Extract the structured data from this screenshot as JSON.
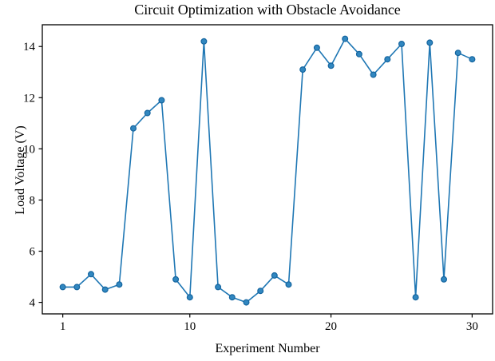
{
  "chart_data": {
    "type": "line",
    "title": "Circuit Optimization with Obstacle Avoidance",
    "xlabel": "Experiment Number",
    "ylabel": "Load Voltage (V)",
    "x": [
      1,
      2,
      3,
      4,
      5,
      6,
      7,
      8,
      9,
      10,
      11,
      12,
      13,
      14,
      15,
      16,
      17,
      18,
      19,
      20,
      21,
      22,
      23,
      24,
      25,
      26,
      27,
      28,
      29,
      30
    ],
    "values": [
      4.6,
      4.6,
      5.1,
      4.5,
      4.7,
      10.8,
      11.4,
      11.9,
      4.9,
      4.2,
      14.2,
      4.6,
      4.2,
      4.0,
      4.45,
      5.05,
      4.7,
      13.1,
      13.95,
      13.25,
      14.3,
      13.7,
      12.9,
      13.5,
      14.1,
      4.2,
      14.15,
      4.9,
      13.75,
      13.5
    ],
    "x_ticks": [
      1,
      10,
      20,
      30
    ],
    "y_ticks": [
      4,
      6,
      8,
      10,
      12,
      14
    ],
    "xlim": [
      -0.45,
      31.45
    ],
    "ylim": [
      3.55,
      14.85
    ],
    "grid": false,
    "legend": null,
    "marker": "circle",
    "colors": {
      "line": "#1f77b4",
      "marker_fill": "#3187c0",
      "marker_edge": "#15659f",
      "axis": "#000000",
      "tick_text": "#000000"
    }
  }
}
